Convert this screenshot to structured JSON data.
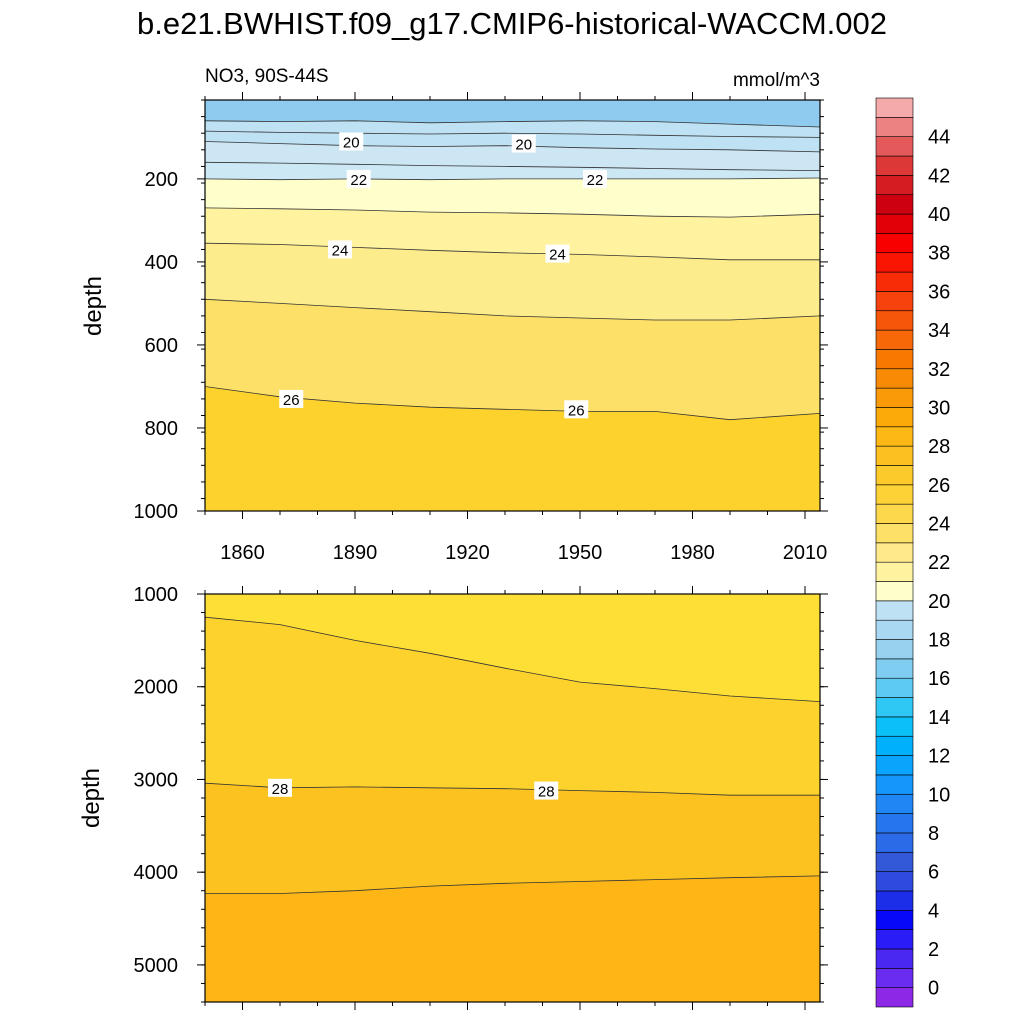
{
  "title": "b.e21.BWHIST.f09_g17.CMIP6-historical-WACCM.002",
  "left_string": "NO3, 90S-44S",
  "right_string": "mmol/m^3",
  "colorbar": {
    "levels": [
      0,
      2,
      4,
      6,
      8,
      10,
      12,
      14,
      16,
      18,
      20,
      22,
      24,
      26,
      28,
      30,
      32,
      34,
      36,
      38,
      40,
      42,
      44
    ],
    "labels": [
      "0",
      "2",
      "4",
      "6",
      "8",
      "10",
      "12",
      "14",
      "16",
      "18",
      "20",
      "22",
      "24",
      "26",
      "28",
      "30",
      "32",
      "34",
      "36",
      "38",
      "40",
      "42",
      "44"
    ],
    "colors": [
      "#8c28e6",
      "#6a2cf0",
      "#4a28f2",
      "#2a1cf6",
      "#0808f8",
      "#1c2ee8",
      "#2f4bdf",
      "#3358d8",
      "#2c6be8",
      "#2576ee",
      "#1f86f4",
      "#1496fa",
      "#0aa4fc",
      "#00b0fa",
      "#0ac0f6",
      "#2fc8f4",
      "#5ccaf2",
      "#7fcdf0",
      "#96d2f0",
      "#a8d8f2",
      "#bee2f4",
      "#ffffcc",
      "#fff3a0",
      "#ffe98a",
      "#fde067",
      "#fcd84a",
      "#fdd236",
      "#fcca2a",
      "#fcc020",
      "#fdb816",
      "#fcaa0a",
      "#fa9a08",
      "#f98a06",
      "#f87802",
      "#f66808",
      "#f6560a",
      "#f6420c",
      "#f82c06",
      "#fa1402",
      "#f80000",
      "#e20008",
      "#cc0010",
      "#d41c22",
      "#dc3838",
      "#e45a5a",
      "#ec8282",
      "#f4aaaa"
    ]
  },
  "chart_data": [
    {
      "type": "contour",
      "panel": "upper",
      "left_string": "NO3, 90S-44S",
      "right_string": "mmol/m^3",
      "ylabel": "depth",
      "xlim": [
        1850,
        2014
      ],
      "ylim": [
        1000,
        10
      ],
      "xticks": [
        1860,
        1890,
        1920,
        1950,
        1980,
        2010
      ],
      "yticks": [
        200,
        400,
        600,
        800,
        1000
      ],
      "contours": [
        {
          "level": 19,
          "x": [
            1850,
            1870,
            1890,
            1910,
            1930,
            1950,
            1970,
            1990,
            2014
          ],
          "y": [
            60,
            62,
            60,
            65,
            62,
            60,
            62,
            68,
            75
          ]
        },
        {
          "level": 19.5,
          "x": [
            1850,
            1870,
            1890,
            1910,
            1930,
            1950,
            1970,
            1990,
            2014
          ],
          "y": [
            85,
            88,
            90,
            92,
            90,
            92,
            95,
            98,
            100
          ]
        },
        {
          "level": 20,
          "x": [
            1850,
            1870,
            1890,
            1910,
            1930,
            1950,
            1970,
            1990,
            2014
          ],
          "y": [
            110,
            115,
            120,
            122,
            120,
            125,
            128,
            130,
            135
          ]
        },
        {
          "level": 21,
          "x": [
            1850,
            1870,
            1890,
            1910,
            1930,
            1950,
            1970,
            1990,
            2014
          ],
          "y": [
            160,
            162,
            165,
            168,
            170,
            172,
            175,
            178,
            180
          ]
        },
        {
          "level": 22,
          "x": [
            1850,
            1870,
            1890,
            1910,
            1930,
            1950,
            1970,
            1990,
            2014
          ],
          "y": [
            200,
            202,
            200,
            202,
            200,
            200,
            200,
            200,
            198
          ]
        },
        {
          "level": 23,
          "x": [
            1850,
            1870,
            1890,
            1910,
            1930,
            1950,
            1970,
            1990,
            2014
          ],
          "y": [
            270,
            272,
            275,
            280,
            282,
            285,
            290,
            292,
            285
          ]
        },
        {
          "level": 24,
          "x": [
            1850,
            1870,
            1890,
            1910,
            1930,
            1950,
            1970,
            1990,
            2014
          ],
          "y": [
            355,
            358,
            365,
            372,
            378,
            382,
            388,
            395,
            395
          ]
        },
        {
          "level": 25,
          "x": [
            1850,
            1870,
            1890,
            1910,
            1930,
            1950,
            1970,
            1990,
            2014
          ],
          "y": [
            490,
            500,
            510,
            520,
            530,
            535,
            540,
            540,
            530
          ]
        },
        {
          "level": 26,
          "x": [
            1850,
            1870,
            1890,
            1910,
            1930,
            1950,
            1970,
            1990,
            2014
          ],
          "y": [
            700,
            725,
            740,
            750,
            755,
            760,
            760,
            780,
            765
          ]
        }
      ],
      "labels": [
        {
          "text": "20",
          "x": 1889,
          "y": 110
        },
        {
          "text": "20",
          "x": 1935,
          "y": 115
        },
        {
          "text": "22",
          "x": 1891,
          "y": 200
        },
        {
          "text": "22",
          "x": 1954,
          "y": 200
        },
        {
          "text": "24",
          "x": 1886,
          "y": 370
        },
        {
          "text": "24",
          "x": 1944,
          "y": 380
        },
        {
          "text": "26",
          "x": 1873,
          "y": 730
        },
        {
          "text": "26",
          "x": 1949,
          "y": 755
        }
      ]
    },
    {
      "type": "contour",
      "panel": "lower",
      "ylabel": "depth",
      "xlim": [
        1850,
        2014
      ],
      "ylim": [
        5400,
        1000
      ],
      "yticks": [
        1000,
        2000,
        3000,
        4000,
        5000
      ],
      "contours": [
        {
          "level": 27,
          "x": [
            1850,
            1870,
            1890,
            1910,
            1930,
            1950,
            1970,
            1990,
            2014
          ],
          "y": [
            1250,
            1330,
            1500,
            1640,
            1800,
            1950,
            2020,
            2100,
            2160
          ]
        },
        {
          "level": 28,
          "x": [
            1850,
            1870,
            1890,
            1910,
            1930,
            1950,
            1970,
            1990,
            2014
          ],
          "y": [
            3040,
            3090,
            3080,
            3090,
            3100,
            3120,
            3140,
            3170,
            3170
          ]
        },
        {
          "level": 29,
          "x": [
            1850,
            1870,
            1890,
            1910,
            1930,
            1950,
            1970,
            1990,
            2014
          ],
          "y": [
            4230,
            4230,
            4200,
            4150,
            4120,
            4100,
            4080,
            4060,
            4040
          ]
        }
      ],
      "labels": [
        {
          "text": "28",
          "x": 1870,
          "y": 3090
        },
        {
          "text": "28",
          "x": 1941,
          "y": 3120
        }
      ]
    }
  ]
}
